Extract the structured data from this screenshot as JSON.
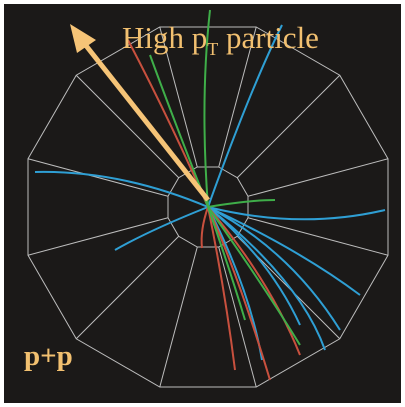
{
  "annotation": {
    "main": "High p",
    "subscript": "T",
    "rest": " particle"
  },
  "system": "p+p"
}
